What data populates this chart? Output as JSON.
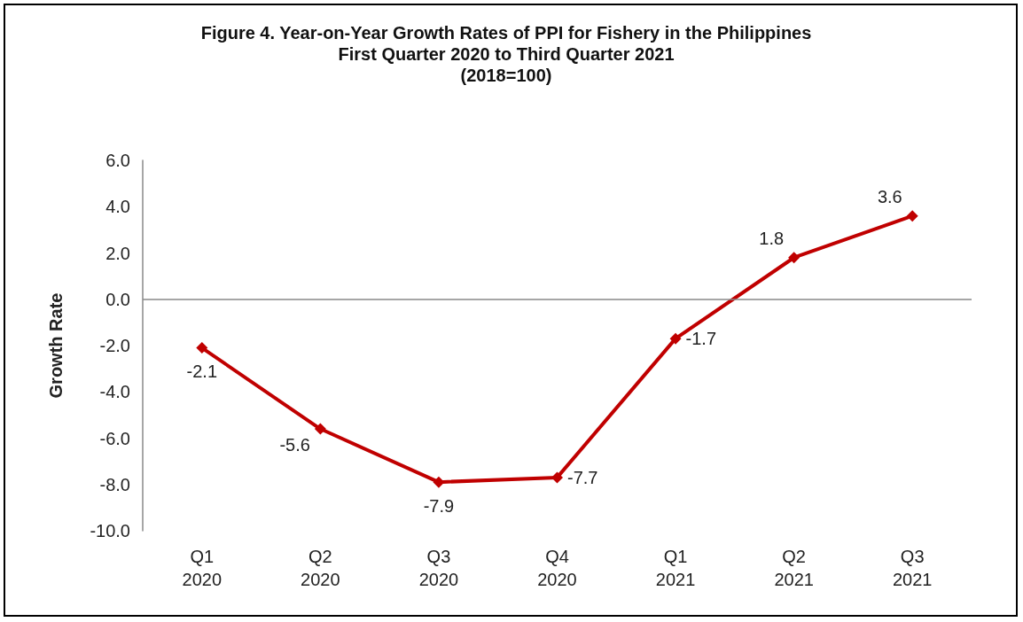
{
  "chart_data": {
    "type": "line",
    "title": "Figure 4. Year-on-Year Growth Rates of PPI for Fishery in the Philippines\nFirst Quarter 2020 to Third Quarter 2021\n(2018=100)",
    "ylabel": "Growth Rate",
    "categories": [
      "Q1\n2020",
      "Q2\n2020",
      "Q3\n2020",
      "Q4\n2020",
      "Q1\n2021",
      "Q2\n2021",
      "Q3\n2021"
    ],
    "series": [
      {
        "color": "#c00000",
        "values": [
          -2.1,
          -5.6,
          -7.9,
          -7.7,
          -1.7,
          1.8,
          3.6
        ]
      }
    ],
    "ylim": [
      -10,
      6
    ],
    "yticks": [
      {
        "value": -10,
        "label": "-10.0"
      },
      {
        "value": -8,
        "label": "-8.0"
      },
      {
        "value": -6,
        "label": "-6.0"
      },
      {
        "value": -4,
        "label": "-4.0"
      },
      {
        "value": -2,
        "label": "-2.0"
      },
      {
        "value": 0,
        "label": "0.0"
      },
      {
        "value": 2,
        "label": "2.0"
      },
      {
        "value": 4,
        "label": "4.0"
      },
      {
        "value": 6,
        "label": "6.0"
      }
    ],
    "ref_lines": [
      {
        "axis": "y",
        "value": 0,
        "color": "#888888"
      }
    ],
    "data_labels": true,
    "marker": "diamond",
    "line_style": "solid"
  }
}
